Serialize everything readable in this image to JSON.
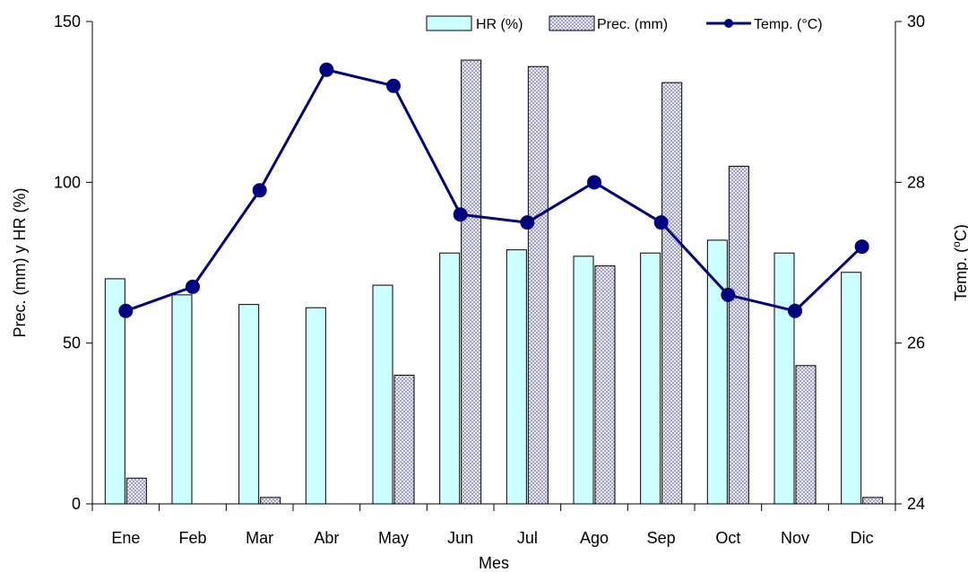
{
  "chart_data": {
    "type": "bar",
    "title": "",
    "xlabel": "Mes",
    "ylabel": "Prec. (mm) y  HR (%)",
    "y2label": "Temp. (",
    "y2label_unit_sup": "o",
    "y2label_unit": "C)",
    "categories": [
      "Ene",
      "Feb",
      "Mar",
      "Abr",
      "May",
      "Jun",
      "Jul",
      "Ago",
      "Sep",
      "Oct",
      "Nov",
      "Dic"
    ],
    "ylim": [
      0,
      150
    ],
    "yticks": [
      0,
      50,
      100,
      150
    ],
    "y2lim": [
      24,
      30
    ],
    "y2ticks": [
      24,
      26,
      28,
      30
    ],
    "grid": false,
    "legend_position": "top-right",
    "series": [
      {
        "name": "HR (%)",
        "kind": "bar",
        "axis": "left",
        "color": "#ccffff",
        "values": [
          70,
          65,
          62,
          61,
          68,
          78,
          79,
          77,
          78,
          82,
          78,
          72
        ]
      },
      {
        "name": "Prec. (mm)",
        "kind": "bar",
        "axis": "left",
        "pattern": "dotted",
        "color": "#c8c8e6",
        "values": [
          8,
          0,
          2,
          0,
          40,
          138,
          136,
          74,
          131,
          105,
          43,
          2
        ]
      },
      {
        "name": "Temp. (°C)",
        "kind": "line",
        "axis": "right",
        "color": "#000080",
        "values": [
          26.4,
          26.7,
          27.9,
          29.4,
          29.2,
          27.6,
          27.5,
          28.0,
          27.5,
          26.6,
          26.4,
          27.2
        ]
      }
    ]
  }
}
